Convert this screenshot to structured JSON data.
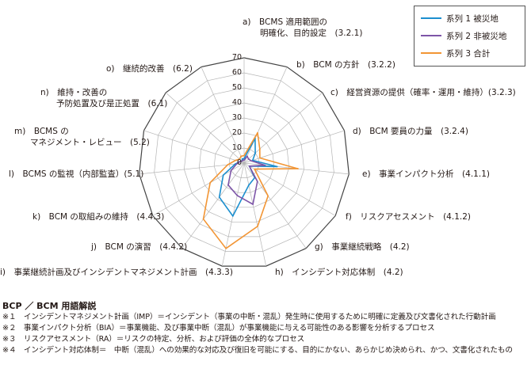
{
  "chart_data": {
    "type": "radar",
    "title": "",
    "axis_max": 70,
    "axis_step": 10,
    "tick_labels": [
      "0",
      "10",
      "20",
      "30",
      "40",
      "50",
      "60",
      "70"
    ],
    "categories": [
      "a)　BCMS 適用範囲の\n明確化、目的設定　(3.2.1)",
      "b)　BCM の方針　(3.2.2)",
      "c)　経営資源の提供（確率・運用・維持）(3.2.3)",
      "d)　BCM 要員の力量　(3.2.4)",
      "e)　事業インパクト分析　(4.1.1)",
      "f)　リスクアセスメント　(4.1.2)",
      "g)　事業継続戦略　(4.2)",
      "h)　インシデント対応体制　(4.2)",
      "i)　事業継続計画及びインシデントマネジメント計画　(4.3.3)",
      "j)　BCM の演習　(4.4.2)",
      "k)　BCM の取組みの維持　(4.4.3)",
      "l)　BCMS の監視（内部監査）(5.1)",
      "m)　BCMS の\nマネジメント・レビュー　(5.2)",
      "n)　維持・改善の\n予防処置及び是正処置　(6.1)",
      "o)　継続的改善　(6.2)"
    ],
    "series": [
      {
        "name": "系列 1 被災地",
        "color": "#1c8fcf",
        "values": [
          3,
          18,
          10,
          6,
          22,
          4,
          12,
          15,
          36,
          28,
          16,
          6,
          3,
          2,
          3
        ]
      },
      {
        "name": "系列 2 非被災地",
        "color": "#7d55a8",
        "values": [
          2,
          5,
          4,
          5,
          14,
          4,
          15,
          28,
          22,
          18,
          10,
          5,
          3,
          2,
          2
        ]
      },
      {
        "name": "系列 3 合計",
        "color": "#f29534",
        "values": [
          5,
          22,
          14,
          11,
          36,
          8,
          27,
          43,
          58,
          46,
          26,
          11,
          6,
          4,
          5
        ]
      }
    ],
    "grid": true,
    "legend_position": "top-right"
  },
  "glossary": {
    "title": "BCP ／ BCM 用語解説",
    "items": [
      "※１　インシデントマネジメント計画（IMP）＝インシデント（事業の中断・混乱）発生時に使用するために明確に定義及び文書化された行動計画",
      "※２　事業インパクト分析（BIA）＝事業機能、及び事業中断（混乱）が事業機能に与える可能性のある影響を分析するプロセス",
      "※３　リスクアセスメント（RA）＝リスクの特定、分析、および評価の全体的なプロセス",
      "※４　インシデント対応体制＝　中断（混乱）への効果的な対応及び復旧を可能にする、目的にかない、あらかじめ決められ、かつ、文書化されたもの"
    ]
  }
}
